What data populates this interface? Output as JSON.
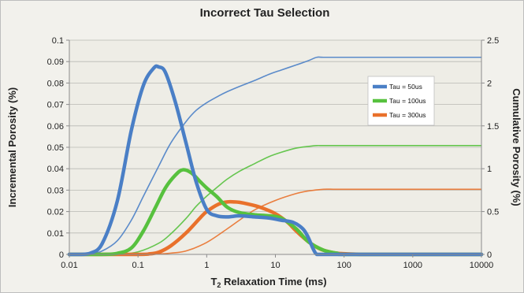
{
  "chart_data": {
    "type": "line",
    "title": "Incorrect Tau Selection",
    "xlabel": {
      "prefix": "T",
      "subscript": "2",
      "suffix": " Relaxation Time (ms)"
    },
    "ylabel_left": "Incremental Porosity (%)",
    "ylabel_right": "Cumulative Porosity (%)",
    "x_scale": "log",
    "xlim": [
      0.01,
      10000
    ],
    "ylim_left": [
      0,
      0.1
    ],
    "ylim_right": [
      0,
      2.5
    ],
    "x_ticks": [
      "0.01",
      "0.1",
      "1",
      "10",
      "100",
      "1000",
      "10000"
    ],
    "y_ticks_left": [
      "0",
      "0.01",
      "0.02",
      "0.03",
      "0.04",
      "0.05",
      "0.06",
      "0.07",
      "0.08",
      "0.09",
      "0.1"
    ],
    "y_ticks_right": [
      "0",
      "0.5",
      "1",
      "1.5",
      "2",
      "2.5"
    ],
    "grid": "horizontal",
    "legend_position": "upper-right inside plot",
    "series": [
      {
        "name": "Tau = 50us",
        "color": "#4a7fc6",
        "incremental": {
          "x": [
            0.01,
            0.015,
            0.02,
            0.03,
            0.05,
            0.08,
            0.12,
            0.17,
            0.2,
            0.25,
            0.35,
            0.5,
            0.7,
            1,
            1.4,
            2,
            3,
            5,
            8,
            12,
            18,
            25,
            30,
            35,
            40,
            50,
            100,
            1000,
            10000
          ],
          "y": [
            0,
            0,
            0.0005,
            0.005,
            0.025,
            0.058,
            0.079,
            0.087,
            0.0875,
            0.085,
            0.071,
            0.052,
            0.034,
            0.021,
            0.018,
            0.0175,
            0.018,
            0.0175,
            0.017,
            0.016,
            0.015,
            0.012,
            0.008,
            0.003,
            0,
            0,
            0,
            0,
            0
          ]
        },
        "cumulative": {
          "x": [
            0.01,
            0.02,
            0.03,
            0.05,
            0.08,
            0.12,
            0.2,
            0.3,
            0.5,
            0.7,
            1,
            1.5,
            2,
            3,
            5,
            8,
            12,
            20,
            30,
            40,
            50,
            100,
            1000,
            10000
          ],
          "y": [
            0,
            0.01,
            0.04,
            0.16,
            0.4,
            0.68,
            1.03,
            1.3,
            1.55,
            1.68,
            1.77,
            1.85,
            1.9,
            1.96,
            2.03,
            2.1,
            2.15,
            2.21,
            2.26,
            2.3,
            2.3,
            2.3,
            2.3,
            2.3
          ]
        }
      },
      {
        "name": "Tau = 100us",
        "color": "#57c13e",
        "incremental": {
          "x": [
            0.01,
            0.03,
            0.05,
            0.08,
            0.12,
            0.18,
            0.25,
            0.35,
            0.45,
            0.6,
            0.8,
            1,
            1.4,
            2,
            3,
            5,
            8,
            12,
            20,
            30,
            50,
            80,
            100,
            1000,
            10000
          ],
          "y": [
            0,
            0,
            0.0005,
            0.003,
            0.011,
            0.022,
            0.031,
            0.037,
            0.0395,
            0.038,
            0.034,
            0.031,
            0.027,
            0.022,
            0.0195,
            0.0185,
            0.018,
            0.017,
            0.012,
            0.006,
            0.002,
            0.0005,
            0,
            0,
            0
          ]
        },
        "cumulative": {
          "x": [
            0.01,
            0.05,
            0.1,
            0.2,
            0.3,
            0.5,
            0.7,
            1,
            1.5,
            2,
            3,
            5,
            8,
            12,
            20,
            30,
            40,
            50,
            100,
            1000,
            10000
          ],
          "y": [
            0,
            0.005,
            0.03,
            0.13,
            0.24,
            0.42,
            0.56,
            0.68,
            0.8,
            0.88,
            0.97,
            1.06,
            1.14,
            1.19,
            1.24,
            1.26,
            1.27,
            1.27,
            1.27,
            1.27,
            1.27
          ]
        }
      },
      {
        "name": "Tau = 300us",
        "color": "#e9712b",
        "incremental": {
          "x": [
            0.01,
            0.1,
            0.15,
            0.2,
            0.3,
            0.5,
            0.8,
            1,
            1.5,
            2,
            2.5,
            3,
            4,
            6,
            10,
            15,
            20,
            30,
            45,
            70,
            100,
            150,
            200,
            1000,
            10000
          ],
          "y": [
            0,
            0,
            0.0003,
            0.001,
            0.004,
            0.01,
            0.017,
            0.02,
            0.0235,
            0.0245,
            0.0245,
            0.0243,
            0.0235,
            0.022,
            0.019,
            0.015,
            0.011,
            0.006,
            0.0025,
            0.0008,
            0.0003,
            0.0001,
            0,
            0,
            0
          ]
        },
        "cumulative": {
          "x": [
            0.01,
            0.1,
            0.2,
            0.3,
            0.5,
            1,
            2,
            3,
            5,
            10,
            20,
            30,
            50,
            70,
            100,
            1000,
            10000
          ],
          "y": [
            0,
            0,
            0.005,
            0.015,
            0.04,
            0.14,
            0.3,
            0.4,
            0.52,
            0.63,
            0.71,
            0.74,
            0.76,
            0.76,
            0.76,
            0.76,
            0.76
          ]
        }
      }
    ]
  }
}
